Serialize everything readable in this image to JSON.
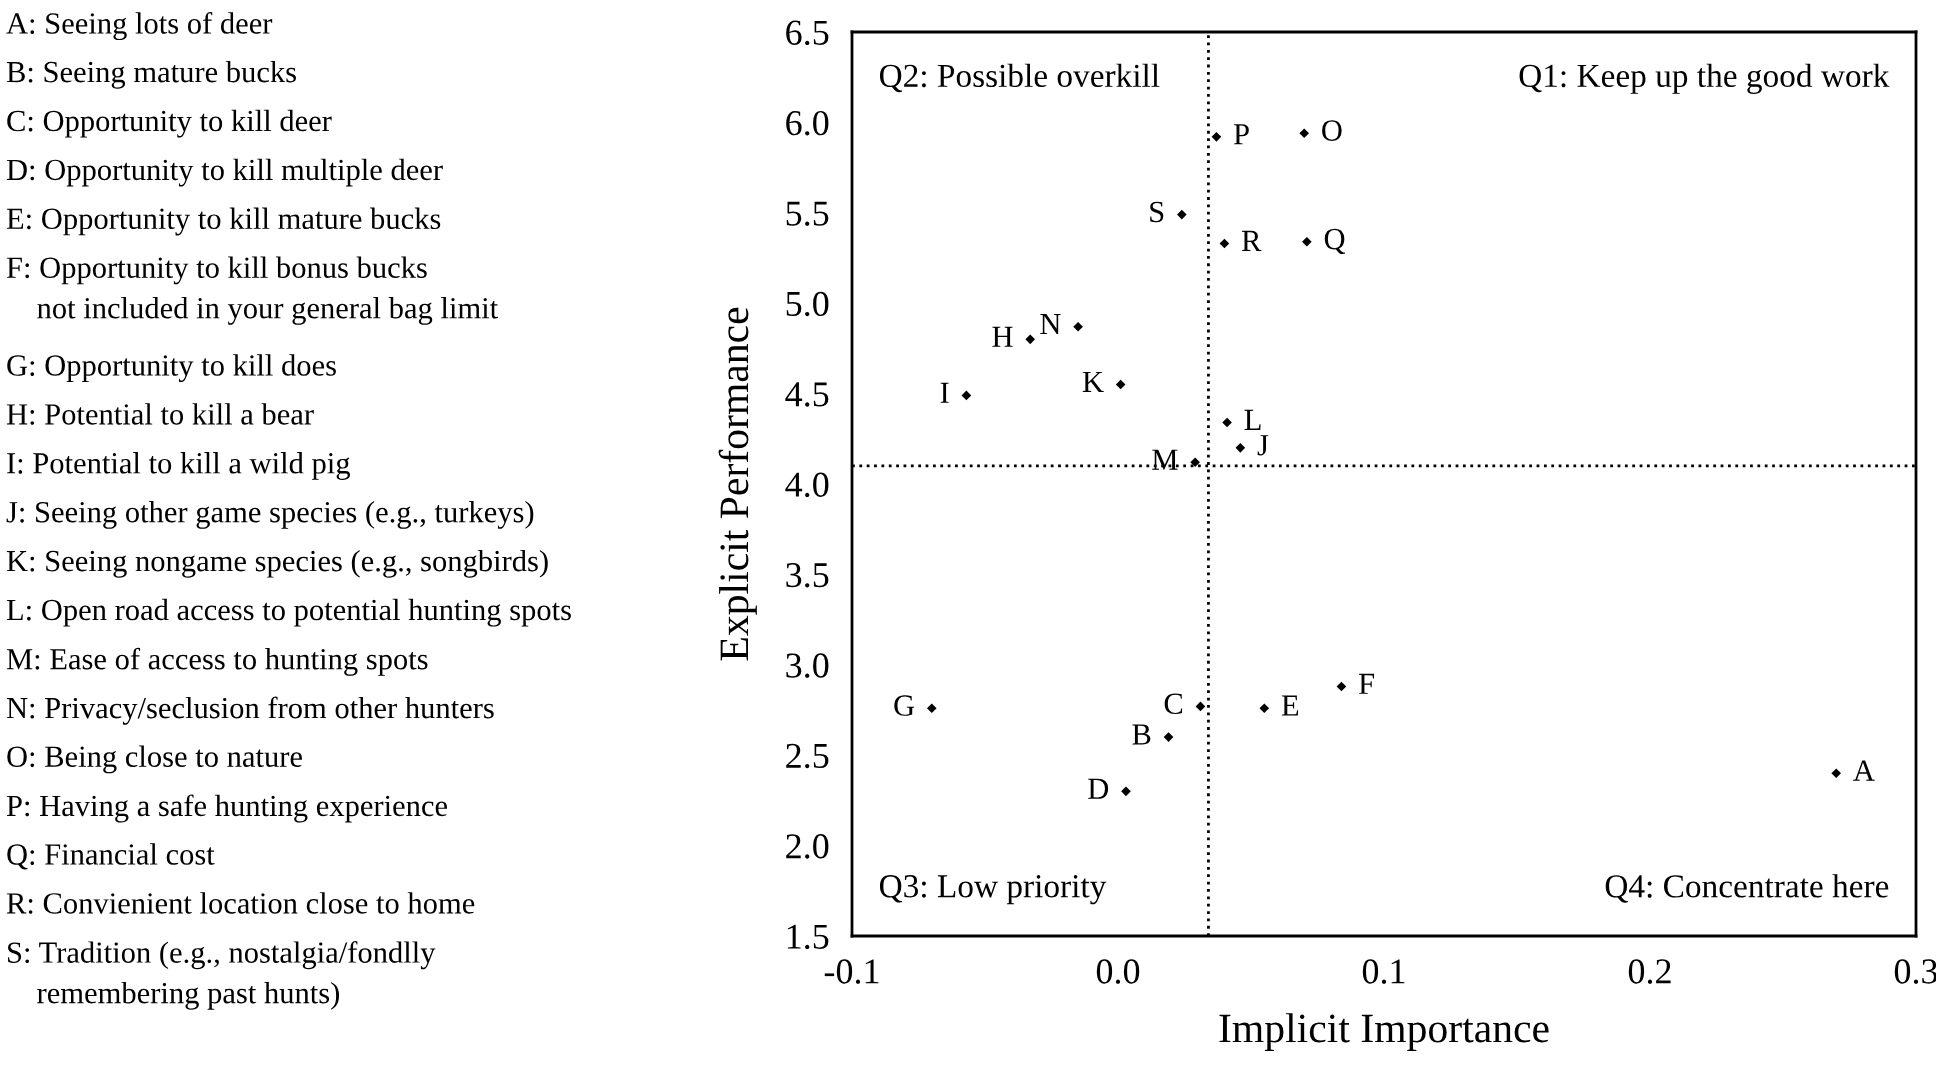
{
  "chart_data": {
    "type": "scatter",
    "xlabel": "Implicit Importance",
    "ylabel": "Explicit Performance",
    "x": [
      0.27,
      0.019,
      0.031,
      0.003,
      0.055,
      0.084,
      -0.07,
      -0.033,
      -0.057,
      0.046,
      0.001,
      0.041,
      0.029,
      -0.015,
      0.07,
      0.037,
      0.071,
      0.04,
      0.024
    ],
    "values": [
      2.4,
      2.6,
      2.77,
      2.3,
      2.76,
      2.88,
      2.76,
      4.8,
      4.49,
      4.2,
      4.55,
      4.34,
      4.12,
      4.87,
      5.94,
      5.92,
      5.34,
      5.33,
      5.49
    ],
    "color": "#000000",
    "marker": "diamond",
    "xlim": [
      -0.1,
      0.3
    ],
    "xticks": [
      -0.1,
      {
        "value": 0.0,
        "label": "0.0"
      },
      0.1,
      0.2,
      0.3
    ],
    "ylim": [
      1.5,
      6.5
    ],
    "yticks": [
      1.5,
      {
        "value": 2.0,
        "label": "2.0"
      },
      2.5,
      {
        "value": 3.0,
        "label": "3.0"
      },
      3.5,
      {
        "value": 4.0,
        "label": "4.0"
      },
      4.5,
      {
        "value": 5.0,
        "label": "5.0"
      },
      5.5,
      {
        "value": 6.0,
        "label": "6.0"
      },
      6.5
    ],
    "grid": false,
    "legend": false,
    "ref_lines": [
      {
        "axis": "x",
        "value": 0.034,
        "line_style": "dotted",
        "color": "#000000"
      },
      {
        "axis": "y",
        "value": 4.1,
        "line_style": "dotted",
        "color": "#000000"
      }
    ],
    "annotations": [
      {
        "text": "A",
        "x": 0.27,
        "y": 2.4
      },
      {
        "text": "B",
        "x": 0.019,
        "y": 2.6
      },
      {
        "text": "C",
        "x": 0.031,
        "y": 2.77
      },
      {
        "text": "D",
        "x": 0.003,
        "y": 2.3
      },
      {
        "text": "E",
        "x": 0.055,
        "y": 2.76
      },
      {
        "text": "F",
        "x": 0.084,
        "y": 2.88
      },
      {
        "text": "G",
        "x": -0.07,
        "y": 2.76
      },
      {
        "text": "H",
        "x": -0.033,
        "y": 4.8
      },
      {
        "text": "I",
        "x": -0.057,
        "y": 4.49
      },
      {
        "text": "J",
        "x": 0.046,
        "y": 4.2
      },
      {
        "text": "K",
        "x": 0.001,
        "y": 4.55
      },
      {
        "text": "L",
        "x": 0.041,
        "y": 4.34
      },
      {
        "text": "M",
        "x": 0.029,
        "y": 4.12
      },
      {
        "text": "N",
        "x": -0.015,
        "y": 4.87
      },
      {
        "text": "O",
        "x": 0.07,
        "y": 5.94
      },
      {
        "text": "P",
        "x": 0.037,
        "y": 5.92
      },
      {
        "text": "Q",
        "x": 0.071,
        "y": 5.34
      },
      {
        "text": "R",
        "x": 0.04,
        "y": 5.33
      },
      {
        "text": "S",
        "x": 0.024,
        "y": 5.49
      },
      "A: Seeing lots of deer",
      "B: Seeing mature bucks",
      "C: Opportunity to kill deer",
      "D: Opportunity to kill multiple deer",
      "E: Opportunity to kill mature bucks",
      "F: Opportunity to kill bonus bucks\n    not included in your general bag limit",
      "G: Opportunity to kill does",
      "H: Potential to kill a bear",
      "I: Potential to kill a wild pig",
      "J: Seeing other game species (e.g., turkeys)",
      "K: Seeing nongame species (e.g., songbirds)",
      "L: Open road access to potential hunting spots",
      "M: Ease of access to hunting spots",
      "N: Privacy/seclusion from other hunters",
      "O: Being close to nature",
      "P: Having a safe hunting experience",
      "Q: Financial cost",
      "R: Convienient location close to home",
      "S: Tradition (e.g., nostalgia/fondlly\n    remembering past hunts)",
      "Q2: Possible overkill",
      "Q1: Keep up the good work",
      "Q3: Low priority",
      "Q4: Concentrate here"
    ]
  }
}
